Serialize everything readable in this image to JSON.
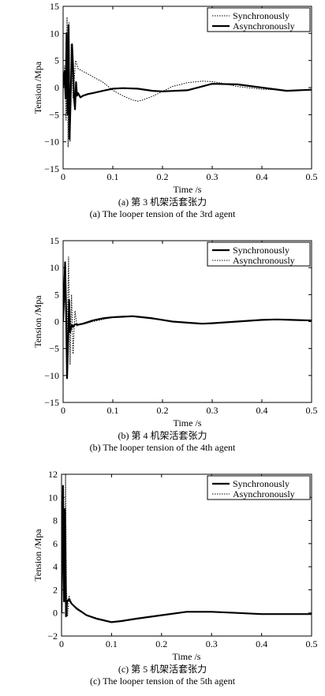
{
  "chart_data": [
    {
      "type": "line",
      "xlabel": "Time /s",
      "ylabel": "Tension /Mpa",
      "xlim": [
        0,
        0.5
      ],
      "ylim": [
        -15,
        15
      ],
      "xticks": [
        "0",
        "0.1",
        "0.2",
        "0.3",
        "0.4",
        "0.5"
      ],
      "yticks": [
        "15",
        "10",
        "5",
        "0",
        "−5",
        "−10",
        "−15"
      ],
      "legend_position": "top-right",
      "caption_cn": "(a) 第 3 机架活套张力",
      "caption_en": "(a) The looper tension of the 3rd agent",
      "series": [
        {
          "name": "Synchronously",
          "style": "dotted",
          "x": [
            0,
            0.003,
            0.006,
            0.008,
            0.01,
            0.012,
            0.014,
            0.016,
            0.02,
            0.025,
            0.03,
            0.04,
            0.05,
            0.06,
            0.08,
            0.1,
            0.12,
            0.14,
            0.15,
            0.16,
            0.18,
            0.2,
            0.22,
            0.25,
            0.28,
            0.3,
            0.32,
            0.35,
            0.4,
            0.45,
            0.5
          ],
          "y": [
            0,
            4,
            -6,
            13,
            -11,
            12,
            -10,
            8,
            -2,
            5,
            3.5,
            3,
            2.5,
            2,
            1,
            -0.5,
            -1.5,
            -2.3,
            -2.5,
            -2.3,
            -1.6,
            -0.7,
            0.2,
            0.9,
            1.2,
            1.1,
            0.8,
            0.2,
            -0.3,
            -0.5,
            -0.4
          ]
        },
        {
          "name": "Asynchronously",
          "style": "solid",
          "x": [
            0,
            0.003,
            0.005,
            0.007,
            0.009,
            0.011,
            0.013,
            0.016,
            0.018,
            0.02,
            0.022,
            0.024,
            0.026,
            0.028,
            0.03,
            0.035,
            0.04,
            0.05,
            0.06,
            0.08,
            0.1,
            0.12,
            0.15,
            0.18,
            0.2,
            0.25,
            0.3,
            0.35,
            0.4,
            0.45,
            0.5
          ],
          "y": [
            0,
            3,
            -2,
            10,
            -5,
            11.5,
            -9.5,
            1,
            8,
            4,
            -2,
            -4,
            1,
            -1.5,
            -1,
            -1.8,
            -1.5,
            -1.2,
            -1,
            -0.6,
            -0.2,
            -0.1,
            -0.2,
            -0.6,
            -0.7,
            -0.5,
            0.7,
            0.6,
            0,
            -0.6,
            -0.4
          ]
        }
      ]
    },
    {
      "type": "line",
      "xlabel": "Time /s",
      "ylabel": "Tension /Mpa",
      "xlim": [
        0,
        0.5
      ],
      "ylim": [
        -15,
        15
      ],
      "xticks": [
        "0",
        "0.1",
        "0.2",
        "0.3",
        "0.4",
        "0.5"
      ],
      "yticks": [
        "15",
        "10",
        "5",
        "0",
        "−5",
        "−10",
        "−15"
      ],
      "legend_position": "top-right",
      "caption_cn": "(b) 第 4 机架活套张力",
      "caption_en": "(b) The looper tension of the 4th agent",
      "series": [
        {
          "name": "Synchronously",
          "style": "solid",
          "x": [
            0,
            0.004,
            0.006,
            0.008,
            0.01,
            0.012,
            0.014,
            0.016,
            0.018,
            0.02,
            0.024,
            0.03,
            0.04,
            0.06,
            0.08,
            0.1,
            0.12,
            0.14,
            0.16,
            0.18,
            0.2,
            0.22,
            0.25,
            0.28,
            0.3,
            0.35,
            0.4,
            0.43,
            0.46,
            0.5
          ],
          "y": [
            0,
            11,
            2,
            -10.5,
            -4,
            4,
            -2,
            -1.2,
            -0.6,
            -1,
            -0.5,
            -0.6,
            -0.4,
            0.2,
            0.6,
            0.8,
            0.9,
            1,
            0.8,
            0.6,
            0.3,
            0,
            -0.2,
            -0.4,
            -0.3,
            0,
            0.3,
            0.4,
            0.3,
            0.2
          ]
        },
        {
          "name": "Asynchronously",
          "style": "dotted",
          "x": [
            0,
            0.004,
            0.008,
            0.011,
            0.014,
            0.017,
            0.02,
            0.024,
            0.028,
            0.035,
            0.04,
            0.06,
            0.08,
            0.1,
            0.12,
            0.14,
            0.16,
            0.18,
            0.2,
            0.25,
            0.3,
            0.35,
            0.4,
            0.45,
            0.5
          ],
          "y": [
            0,
            5,
            -4,
            12,
            -8,
            5,
            -6,
            2,
            -0.8,
            -0.4,
            -0.5,
            0,
            0.4,
            0.8,
            1,
            0.9,
            0.7,
            0.5,
            0.3,
            -0.3,
            -0.3,
            0,
            0.3,
            0.3,
            0.2
          ]
        }
      ]
    },
    {
      "type": "line",
      "xlabel": "Time /s",
      "ylabel": "Tension /Mpa",
      "xlim": [
        0,
        0.5
      ],
      "ylim": [
        -2,
        12
      ],
      "xticks": [
        "0",
        "0.1",
        "0.2",
        "0.3",
        "0.4",
        "0.5"
      ],
      "yticks": [
        "12",
        "10",
        "8",
        "6",
        "4",
        "2",
        "0",
        "−2"
      ],
      "legend_position": "top-right",
      "caption_cn": "(c) 第 5 机架活套张力",
      "caption_en": "(c) The looper tension of the 5th agent",
      "series": [
        {
          "name": "Synchronously",
          "style": "solid",
          "x": [
            0,
            0.003,
            0.005,
            0.007,
            0.009,
            0.011,
            0.015,
            0.02,
            0.03,
            0.05,
            0.07,
            0.1,
            0.12,
            0.15,
            0.2,
            0.25,
            0.3,
            0.35,
            0.4,
            0.45,
            0.5
          ],
          "y": [
            0,
            11,
            1,
            9,
            -0.3,
            1,
            1.2,
            0.8,
            0.4,
            -0.2,
            -0.5,
            -0.8,
            -0.7,
            -0.5,
            -0.2,
            0.1,
            0.1,
            0,
            -0.1,
            -0.1,
            -0.1
          ]
        },
        {
          "name": "Asynchronously",
          "style": "dotted",
          "x": [
            0,
            0.004,
            0.006,
            0.008,
            0.01,
            0.012,
            0.015,
            0.02,
            0.03,
            0.05,
            0.1,
            0.15,
            0.2,
            0.25,
            0.3,
            0.35,
            0.4,
            0.45,
            0.5
          ],
          "y": [
            0,
            10,
            3,
            12,
            2,
            -0.3,
            1.5,
            0.8,
            0.3,
            -0.2,
            -0.8,
            -0.5,
            -0.2,
            0.1,
            0.1,
            0,
            -0.1,
            -0.1,
            -0.1
          ]
        }
      ]
    }
  ]
}
